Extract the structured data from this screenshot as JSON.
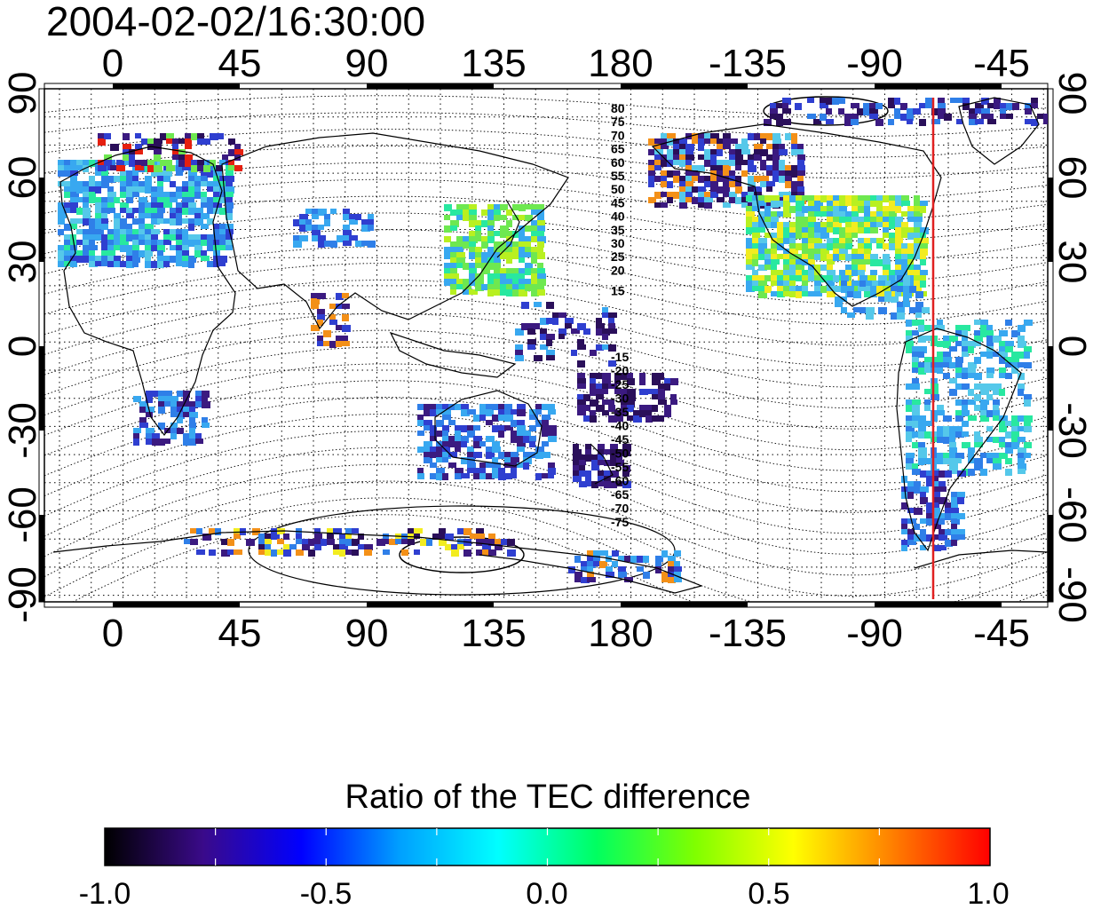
{
  "timestamp": "2004-02-02/16:30:00",
  "map": {
    "top_ticks": [
      "0",
      "45",
      "90",
      "135",
      "180",
      "-135",
      "-90",
      "-45"
    ],
    "bottom_ticks": [
      "0",
      "45",
      "90",
      "135",
      "180",
      "-135",
      "-90",
      "-45"
    ],
    "left_ticks": [
      "90",
      "60",
      "30",
      "0",
      "-30",
      "-60",
      "-90"
    ],
    "right_ticks": [
      "90",
      "60",
      "30",
      "0",
      "-30",
      "-60",
      "-90"
    ],
    "grid": "dotted",
    "north_contour_labels": [
      "80",
      "75",
      "70",
      "65",
      "60",
      "55",
      "50",
      "45",
      "40",
      "35",
      "30",
      "25",
      "20",
      "15"
    ],
    "south_contour_labels": [
      "-15",
      "-20",
      "-25",
      "-30",
      "-35",
      "-40",
      "-45",
      "-50",
      "-55",
      "-60",
      "-65",
      "-70",
      "-75"
    ],
    "marker_line_color": "#e02020",
    "patch_colors": [
      "#2a0f5a",
      "#3b1a80",
      "#2f3fd0",
      "#2f7fe8",
      "#38a8f0",
      "#55c8ea",
      "#28e8a0",
      "#6ee850",
      "#b8f020",
      "#f2ec20",
      "#f39018",
      "#e52010"
    ]
  },
  "colorbar": {
    "title": "Ratio of the TEC difference",
    "ticks": [
      "-1.0",
      "-0.5",
      "0.0",
      "0.5",
      "1.0"
    ],
    "colors": [
      "#000000",
      "#3a0a8a",
      "#0000ff",
      "#00a0ff",
      "#00ffff",
      "#00ff60",
      "#7fff00",
      "#ffff00",
      "#ff8000",
      "#ff0000"
    ]
  }
}
